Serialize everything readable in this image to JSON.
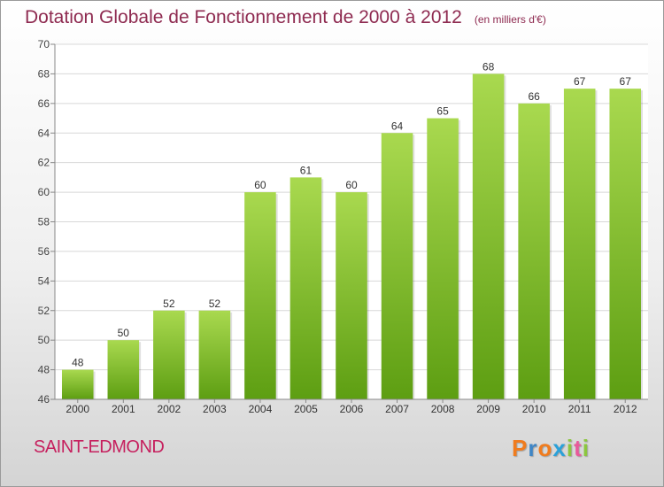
{
  "title": "Dotation Globale de Fonctionnement de 2000 à 2012",
  "subtitle": "(en milliers d'€)",
  "commune": "SAINT-EDMOND",
  "logo": {
    "letters": [
      "P",
      "r",
      "o",
      "x",
      "i",
      "t",
      "i"
    ],
    "colors": [
      "#f07c1e",
      "#3f86c6",
      "#f07c1e",
      "#2aa1d9",
      "#8cc63f",
      "#e85a9b",
      "#8cc63f"
    ]
  },
  "colors": {
    "bar_top": "#a9d94f",
    "bar_bottom": "#5d9e12",
    "grid": "#d8d8d8",
    "title": "#8e2a50",
    "commune": "#c6205e"
  },
  "chart_data": {
    "type": "bar",
    "categories": [
      "2000",
      "2001",
      "2002",
      "2003",
      "2004",
      "2005",
      "2006",
      "2007",
      "2008",
      "2009",
      "2010",
      "2011",
      "2012"
    ],
    "values": [
      48,
      50,
      52,
      52,
      60,
      61,
      60,
      64,
      65,
      68,
      66,
      67,
      67
    ],
    "title": "Dotation Globale de Fonctionnement de 2000 à 2012",
    "subtitle": "(en milliers d'€)",
    "xlabel": "",
    "ylabel": "",
    "ylim": [
      46,
      70
    ],
    "yticks": [
      46,
      48,
      50,
      52,
      54,
      56,
      58,
      60,
      62,
      64,
      66,
      68,
      70
    ],
    "grid": true,
    "data_labels": true
  }
}
